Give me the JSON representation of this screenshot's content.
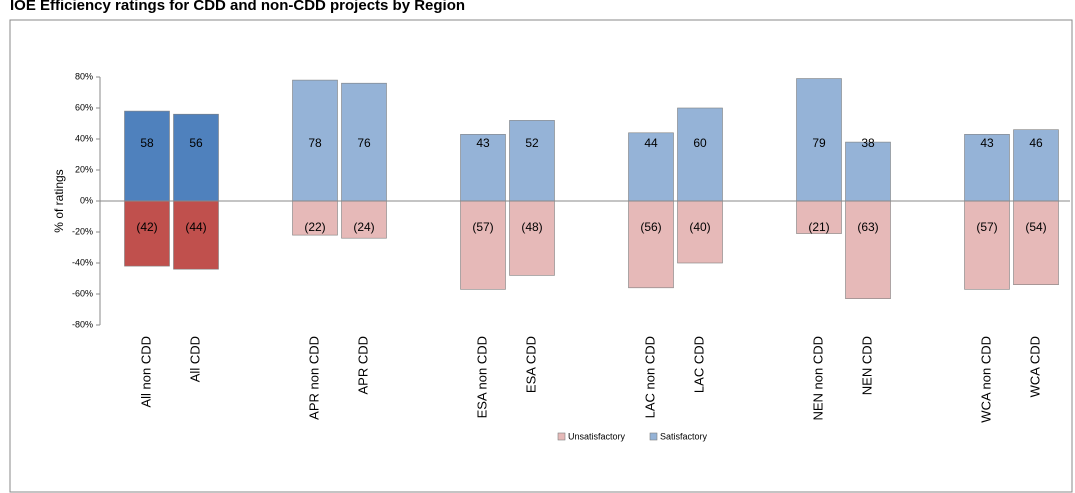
{
  "chart_data": {
    "type": "bar",
    "title": "IOE Efficiency ratings for CDD and non-CDD projects by Region",
    "y_label": "% of ratings",
    "categories": [
      "All non CDD",
      "All CDD",
      "APR non CDD",
      "APR CDD",
      "ESA non CDD",
      "ESA CDD",
      "LAC non CDD",
      "LAC CDD",
      "NEN non CDD",
      "NEN CDD",
      "WCA non  CDD",
      "WCA CDD"
    ],
    "series": [
      {
        "name": "Unsatisfactory",
        "color": "#e6b9b8",
        "colors": [
          "#c0504d",
          "#c0504d",
          "#e6b9b8",
          "#e6b9b8",
          "#e6b9b8",
          "#e6b9b8",
          "#e6b9b8",
          "#e6b9b8",
          "#e6b9b8",
          "#e6b9b8",
          "#e6b9b8",
          "#e6b9b8"
        ],
        "values": [
          -42,
          -44,
          -22,
          -24,
          -57,
          -48,
          -56,
          -40,
          -21,
          -63,
          -57,
          -54
        ],
        "value_labels": [
          "(42)",
          "(44)",
          "(22)",
          "(24)",
          "(57)",
          "(48)",
          "(56)",
          "(40)",
          "(21)",
          "(63)",
          "(57)",
          "(54)"
        ]
      },
      {
        "name": "Satisfactory",
        "color": "#95b3d7",
        "colors": [
          "#4f81bd",
          "#4f81bd",
          "#95b3d7",
          "#95b3d7",
          "#95b3d7",
          "#95b3d7",
          "#95b3d7",
          "#95b3d7",
          "#95b3d7",
          "#95b3d7",
          "#95b3d7",
          "#95b3d7"
        ],
        "values": [
          58,
          56,
          78,
          76,
          43,
          52,
          44,
          60,
          79,
          38,
          43,
          46
        ]
      }
    ],
    "ylim": [
      -80,
      80
    ],
    "yticks": [
      {
        "value": -80,
        "label": "-80%"
      },
      {
        "value": -60,
        "label": "-60%"
      },
      {
        "value": -40,
        "label": "-40%"
      },
      {
        "value": -20,
        "label": "-20%"
      },
      {
        "value": 0,
        "label": "0%"
      },
      {
        "value": 20,
        "label": "20%"
      },
      {
        "value": 40,
        "label": "40%"
      },
      {
        "value": 60,
        "label": "60%"
      },
      {
        "value": 80,
        "label": "80%"
      }
    ],
    "grid": false,
    "legend": "bottom"
  }
}
